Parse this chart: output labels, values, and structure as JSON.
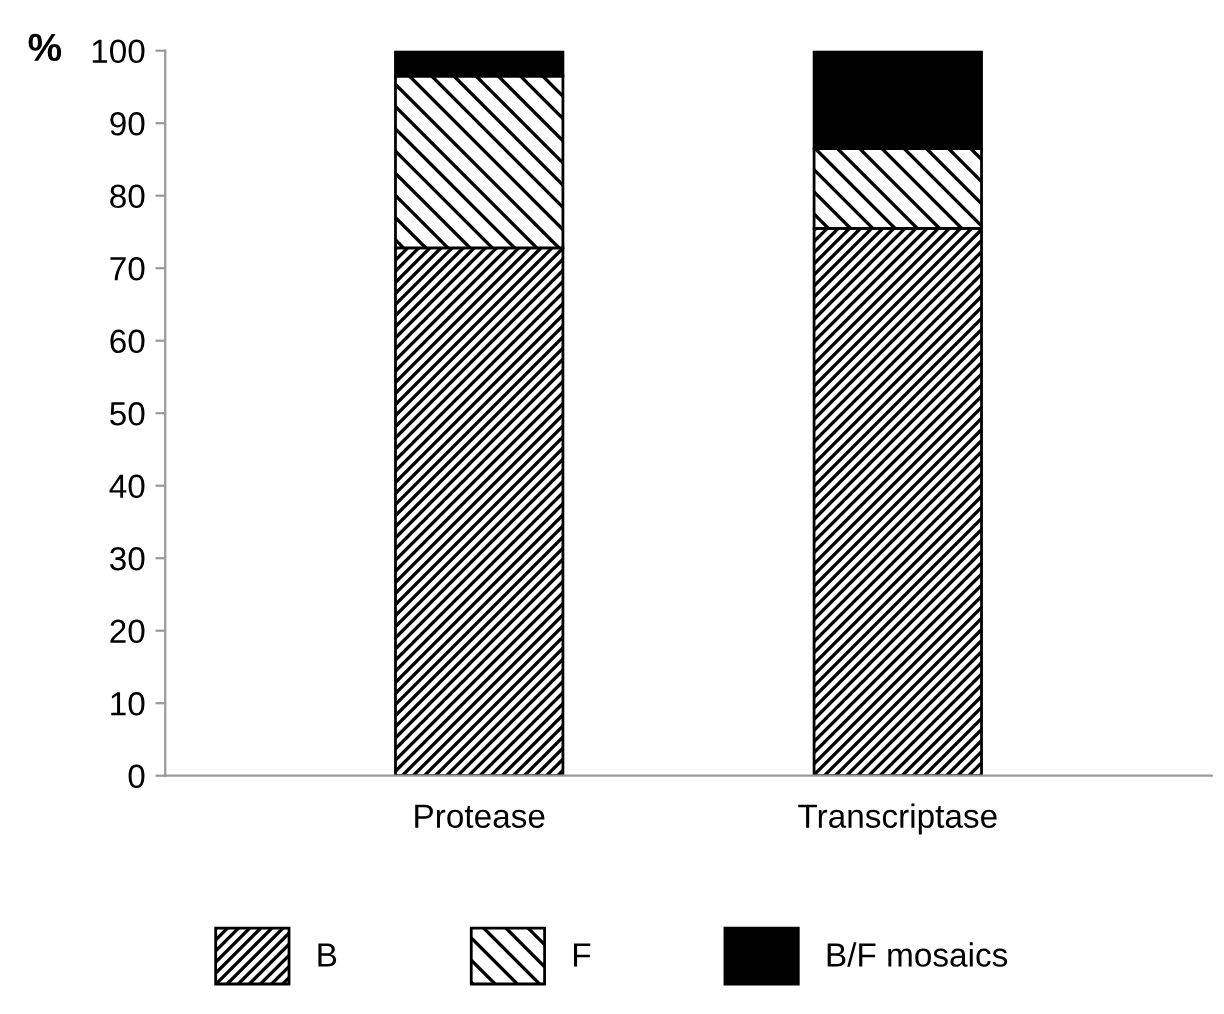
{
  "chart_data": {
    "type": "bar",
    "stacked": true,
    "ylabel": "%",
    "categories": [
      "Protease",
      "Transcriptase"
    ],
    "series": [
      {
        "name": "B",
        "color": "#000000",
        "values": [
          72.8,
          75.5
        ]
      },
      {
        "name": "F",
        "color": "#000000",
        "values": [
          23.7,
          11.0
        ]
      },
      {
        "name": "B/F mosaics",
        "color": "#000000",
        "values": [
          3.5,
          13.5
        ]
      }
    ],
    "ylim": [
      0,
      100
    ],
    "yticks": [
      0,
      10,
      20,
      30,
      40,
      50,
      60,
      70,
      80,
      90,
      100
    ],
    "grid": false,
    "legend": "bottom"
  }
}
